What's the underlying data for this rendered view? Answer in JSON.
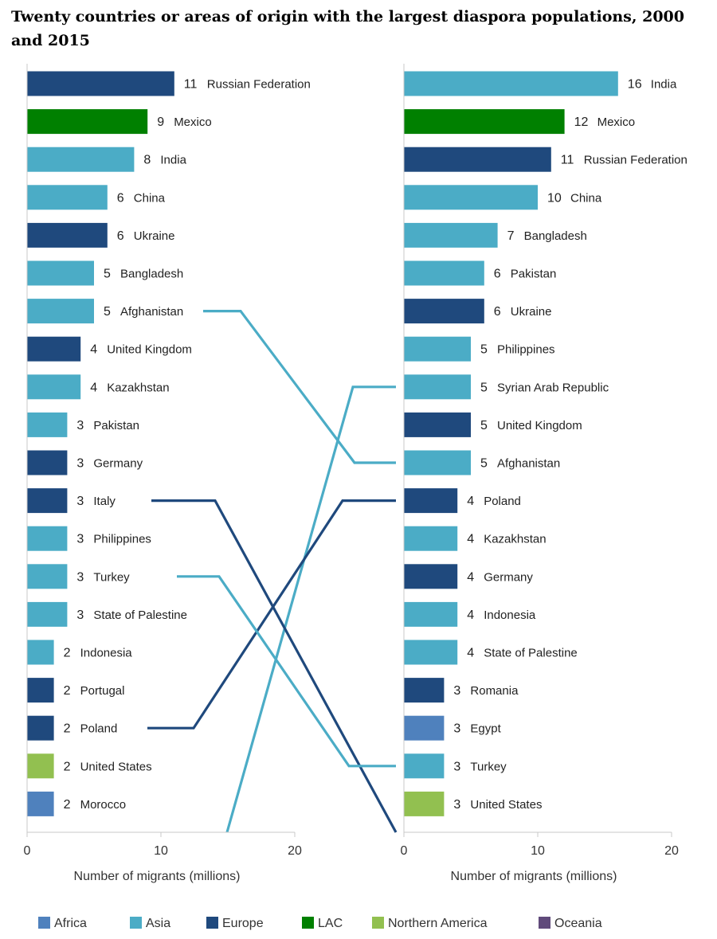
{
  "chart_data": {
    "type": "bar",
    "title": "Twenty countries or areas of origin with the largest diaspora populations, 2000 and 2015",
    "xlabel": "Number of migrants (millions)",
    "xlim": [
      0,
      20
    ],
    "xticks": [
      "0",
      "10",
      "20"
    ],
    "legend_placement": "bottom",
    "region_colors": {
      "Africa": "#4f81bd",
      "Asia": "#4bacc6",
      "Europe": "#1f497d",
      "LAC": "#008000",
      "Northern America": "#92c050",
      "Oceania": "#604a7b"
    },
    "legend": [
      "Africa",
      "Asia",
      "Europe",
      "LAC",
      "Northern America",
      "Oceania"
    ],
    "panels": [
      {
        "year": "2000",
        "bars": [
          {
            "country": "Russian Federation",
            "value": 11,
            "region": "Europe"
          },
          {
            "country": "Mexico",
            "value": 9,
            "region": "LAC"
          },
          {
            "country": "India",
            "value": 8,
            "region": "Asia"
          },
          {
            "country": "China",
            "value": 6,
            "region": "Asia"
          },
          {
            "country": "Ukraine",
            "value": 6,
            "region": "Europe"
          },
          {
            "country": "Bangladesh",
            "value": 5,
            "region": "Asia"
          },
          {
            "country": "Afghanistan",
            "value": 5,
            "region": "Asia"
          },
          {
            "country": "United Kingdom",
            "value": 4,
            "region": "Europe"
          },
          {
            "country": "Kazakhstan",
            "value": 4,
            "region": "Asia"
          },
          {
            "country": "Pakistan",
            "value": 3,
            "region": "Asia"
          },
          {
            "country": "Germany",
            "value": 3,
            "region": "Europe"
          },
          {
            "country": "Italy",
            "value": 3,
            "region": "Europe"
          },
          {
            "country": "Philippines",
            "value": 3,
            "region": "Asia"
          },
          {
            "country": "Turkey",
            "value": 3,
            "region": "Asia"
          },
          {
            "country": "State of Palestine",
            "value": 3,
            "region": "Asia"
          },
          {
            "country": "Indonesia",
            "value": 2,
            "region": "Asia"
          },
          {
            "country": "Portugal",
            "value": 2,
            "region": "Europe"
          },
          {
            "country": "Poland",
            "value": 2,
            "region": "Europe"
          },
          {
            "country": "United States",
            "value": 2,
            "region": "Northern America"
          },
          {
            "country": "Morocco",
            "value": 2,
            "region": "Africa"
          }
        ]
      },
      {
        "year": "2015",
        "bars": [
          {
            "country": "India",
            "value": 16,
            "region": "Asia"
          },
          {
            "country": "Mexico",
            "value": 12,
            "region": "LAC"
          },
          {
            "country": "Russian Federation",
            "value": 11,
            "region": "Europe"
          },
          {
            "country": "China",
            "value": 10,
            "region": "Asia"
          },
          {
            "country": "Bangladesh",
            "value": 7,
            "region": "Asia"
          },
          {
            "country": "Pakistan",
            "value": 6,
            "region": "Asia"
          },
          {
            "country": "Ukraine",
            "value": 6,
            "region": "Europe"
          },
          {
            "country": "Philippines",
            "value": 5,
            "region": "Asia"
          },
          {
            "country": "Syrian Arab Republic",
            "value": 5,
            "region": "Asia"
          },
          {
            "country": "United Kingdom",
            "value": 5,
            "region": "Europe"
          },
          {
            "country": "Afghanistan",
            "value": 5,
            "region": "Asia"
          },
          {
            "country": "Poland",
            "value": 4,
            "region": "Europe"
          },
          {
            "country": "Kazakhstan",
            "value": 4,
            "region": "Asia"
          },
          {
            "country": "Germany",
            "value": 4,
            "region": "Europe"
          },
          {
            "country": "Indonesia",
            "value": 4,
            "region": "Asia"
          },
          {
            "country": "State of Palestine",
            "value": 4,
            "region": "Asia"
          },
          {
            "country": "Romania",
            "value": 3,
            "region": "Europe"
          },
          {
            "country": "Egypt",
            "value": 3,
            "region": "Africa"
          },
          {
            "country": "Turkey",
            "value": 3,
            "region": "Asia"
          },
          {
            "country": "United States",
            "value": 3,
            "region": "Northern America"
          }
        ]
      }
    ],
    "rank_change_lines": [
      {
        "country": "Afghanistan",
        "region": "Asia"
      },
      {
        "country": "Syrian Arab Republic",
        "region": "Asia"
      },
      {
        "country": "Italy",
        "region": "Europe"
      },
      {
        "country": "Poland",
        "region": "Europe"
      },
      {
        "country": "Turkey",
        "region": "Asia"
      }
    ]
  }
}
